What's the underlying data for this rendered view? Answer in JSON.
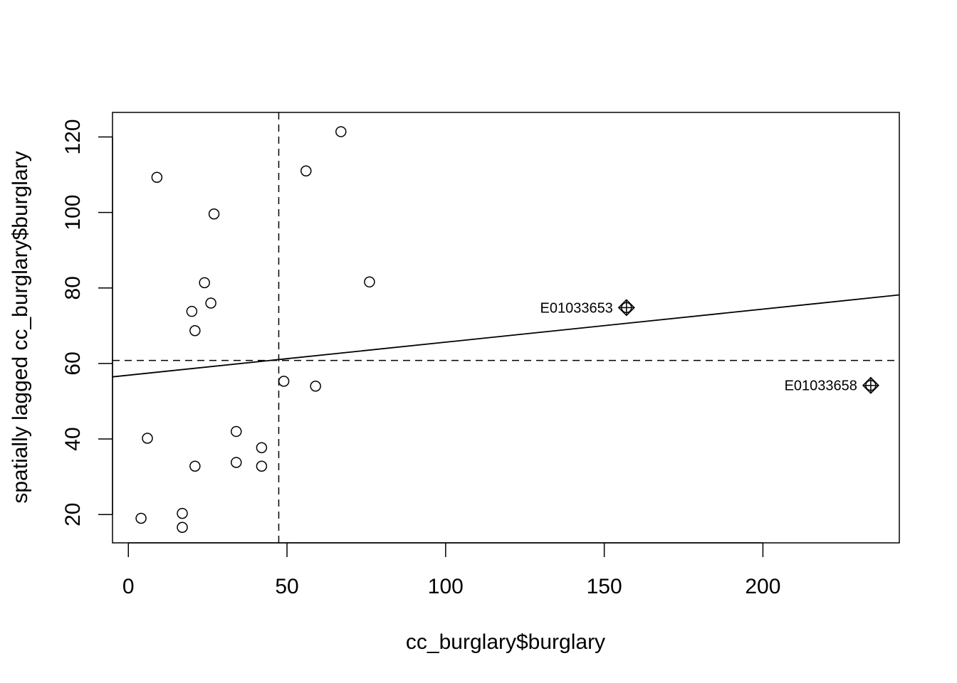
{
  "chart_data": {
    "type": "scatter",
    "title": "",
    "xlabel": "cc_burglary$burglary",
    "ylabel": "spatially lagged cc_burglary$burglary",
    "xlim": [
      -5,
      243
    ],
    "ylim": [
      12.5,
      126.5
    ],
    "xticks": [
      0,
      50,
      100,
      150,
      200
    ],
    "yticks": [
      20,
      40,
      60,
      80,
      100,
      120
    ],
    "grid": false,
    "legend": "none",
    "points": [
      {
        "x": 4,
        "y": 19
      },
      {
        "x": 6,
        "y": 40.2
      },
      {
        "x": 9,
        "y": 109.3
      },
      {
        "x": 17,
        "y": 20.3
      },
      {
        "x": 17,
        "y": 16.6
      },
      {
        "x": 20,
        "y": 73.8
      },
      {
        "x": 21,
        "y": 68.7
      },
      {
        "x": 21,
        "y": 32.8
      },
      {
        "x": 24,
        "y": 81.4
      },
      {
        "x": 26,
        "y": 76
      },
      {
        "x": 27,
        "y": 99.6
      },
      {
        "x": 34,
        "y": 42
      },
      {
        "x": 34,
        "y": 33.8
      },
      {
        "x": 42,
        "y": 37.7
      },
      {
        "x": 42,
        "y": 32.8
      },
      {
        "x": 49,
        "y": 55.3
      },
      {
        "x": 56,
        "y": 111
      },
      {
        "x": 59,
        "y": 54
      },
      {
        "x": 67,
        "y": 121.4
      },
      {
        "x": 76,
        "y": 81.6
      }
    ],
    "influential_points": [
      {
        "x": 157,
        "y": 74.8,
        "label": "E01033653"
      },
      {
        "x": 234,
        "y": 54.2,
        "label": "E01033658"
      }
    ],
    "regression_line": {
      "intercept": 56.9,
      "slope": 0.0875
    },
    "mean_x": 47.4,
    "mean_y": 60.8
  }
}
